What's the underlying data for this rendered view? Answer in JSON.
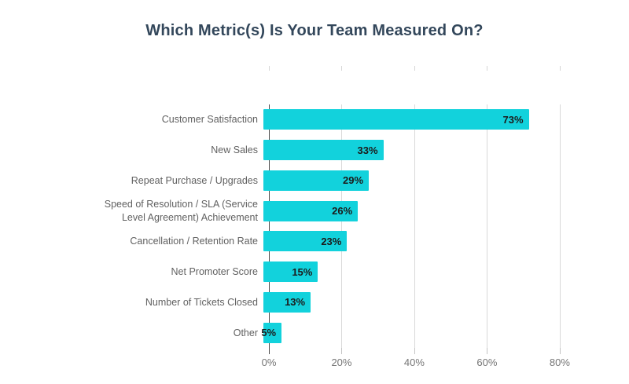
{
  "page": {
    "background": "#ffffff"
  },
  "colors": {
    "bar": "#12d2dc",
    "title": "#33475b",
    "category_label": "#616161",
    "value_label": "#1b1b1b",
    "axis": "#4a4a4a",
    "gridline": "#d9d9d9",
    "tick": "#c4c4c4",
    "tick_label": "#757575"
  },
  "chart_data": {
    "type": "bar",
    "orientation": "horizontal",
    "title": "Which Metric(s) Is Your Team Measured On?",
    "categories": [
      "Customer Satisfaction",
      "New Sales",
      "Repeat Purchase / Upgrades",
      "Speed of Resolution / SLA (Service Level Agreement) Achievement",
      "Cancellation / Retention Rate",
      "Net Promoter Score",
      "Number of Tickets Closed",
      "Other"
    ],
    "values": [
      73,
      33,
      29,
      26,
      23,
      15,
      13,
      5
    ],
    "value_labels": [
      "73%",
      "33%",
      "29%",
      "26%",
      "23%",
      "15%",
      "13%",
      "5%"
    ],
    "x_ticks": [
      "0%",
      "20%",
      "40%",
      "60%",
      "80%"
    ],
    "x_tick_values": [
      0,
      20,
      40,
      60,
      80
    ],
    "xlim": [
      0,
      91.7
    ],
    "xlabel": "",
    "ylabel": "",
    "grid": "vertical-gridlines-at-ticks",
    "legend": "none",
    "bar_value_position": "inside-end"
  }
}
